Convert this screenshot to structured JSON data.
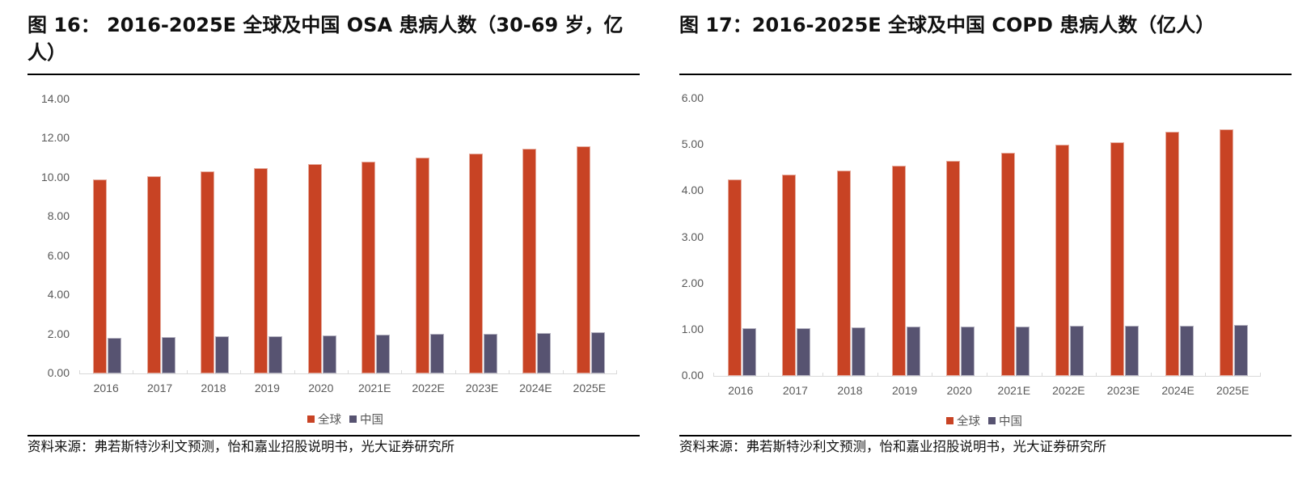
{
  "figures": [
    {
      "title": "图 16：  2016-2025E 全球及中国 OSA 患病人数（30-69 岁，亿人）",
      "source": "资料来源：弗若斯特沙利文预测，怡和嘉业招股说明书，光大证券研究所",
      "legend": [
        {
          "label": "全球",
          "color": "#c84324"
        },
        {
          "label": "中国",
          "color": "#575371"
        }
      ]
    },
    {
      "title": "图 17：2016-2025E 全球及中国 COPD 患病人数（亿人）",
      "source": "资料来源：弗若斯特沙利文预测，怡和嘉业招股说明书，光大证券研究所",
      "legend": [
        {
          "label": "全球",
          "color": "#c84324"
        },
        {
          "label": "中国",
          "color": "#575371"
        }
      ]
    }
  ],
  "chart_data": [
    {
      "type": "bar",
      "title": "2016-2025E 全球及中国 OSA 患病人数（30-69 岁，亿人）",
      "figure_label": "图 16",
      "xlabel": "",
      "ylabel": "",
      "categories": [
        "2016",
        "2017",
        "2018",
        "2019",
        "2020",
        "2021E",
        "2022E",
        "2023E",
        "2024E",
        "2025E"
      ],
      "series": [
        {
          "name": "全球",
          "color": "#c84324",
          "values": [
            9.93,
            10.08,
            10.33,
            10.48,
            10.68,
            10.83,
            11.03,
            11.23,
            11.48,
            11.6
          ]
        },
        {
          "name": "中国",
          "color": "#575371",
          "values": [
            1.8,
            1.84,
            1.88,
            1.92,
            1.95,
            1.98,
            2.01,
            2.03,
            2.06,
            2.09
          ]
        }
      ],
      "ylim": [
        0,
        14
      ],
      "yticks": [
        "0.00",
        "2.00",
        "4.00",
        "6.00",
        "8.00",
        "10.00",
        "12.00",
        "14.00"
      ],
      "grid": false,
      "legend_position": "bottom"
    },
    {
      "type": "bar",
      "title": "2016-2025E 全球及中国 COPD 患病人数（亿人）",
      "figure_label": "图 17",
      "xlabel": "",
      "ylabel": "",
      "categories": [
        "2016",
        "2017",
        "2018",
        "2019",
        "2020",
        "2021E",
        "2022E",
        "2023E",
        "2024E",
        "2025E"
      ],
      "series": [
        {
          "name": "全球",
          "color": "#c84324",
          "values": [
            4.25,
            4.35,
            4.45,
            4.55,
            4.66,
            4.83,
            5.0,
            5.05,
            5.28,
            5.33
          ]
        },
        {
          "name": "中国",
          "color": "#575371",
          "values": [
            1.03,
            1.04,
            1.05,
            1.06,
            1.06,
            1.07,
            1.08,
            1.09,
            1.09,
            1.1
          ]
        }
      ],
      "ylim": [
        0,
        6
      ],
      "yticks": [
        "0.00",
        "1.00",
        "2.00",
        "3.00",
        "4.00",
        "5.00",
        "6.00"
      ],
      "grid": false,
      "legend_position": "bottom"
    }
  ]
}
